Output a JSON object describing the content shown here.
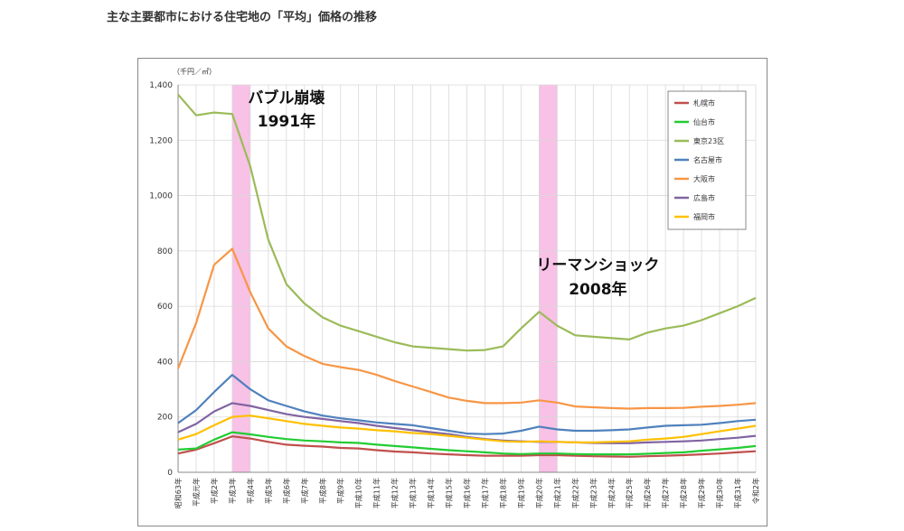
{
  "page": {
    "title": "主な主要都市における住宅地の「平均」価格の推移"
  },
  "colors": {
    "band": "#f7b6e2",
    "grid": "#d9d9d9",
    "axis": "#888888"
  },
  "chart_data": {
    "type": "line",
    "unit_label": "（千円／㎡）",
    "ylim": [
      0,
      1400
    ],
    "yticks": [
      0,
      200,
      400,
      600,
      800,
      1000,
      1200,
      1400
    ],
    "ytick_labels": [
      "0",
      "200",
      "400",
      "600",
      "800",
      "1,000",
      "1,200",
      "1,400"
    ],
    "grid": true,
    "legend_position": "top-right",
    "categories": [
      "昭和63年",
      "平成元年",
      "平成2年",
      "平成3年",
      "平成4年",
      "平成5年",
      "平成6年",
      "平成7年",
      "平成8年",
      "平成9年",
      "平成10年",
      "平成11年",
      "平成12年",
      "平成13年",
      "平成14年",
      "平成15年",
      "平成16年",
      "平成17年",
      "平成18年",
      "平成19年",
      "平成20年",
      "平成21年",
      "平成22年",
      "平成23年",
      "平成24年",
      "平成25年",
      "平成26年",
      "平成27年",
      "平成28年",
      "平成29年",
      "平成30年",
      "平成31年",
      "令和2年"
    ],
    "series": [
      {
        "name": "札幌市",
        "color": "#c0504d",
        "values": [
          68,
          82,
          105,
          130,
          122,
          110,
          100,
          96,
          93,
          88,
          86,
          80,
          75,
          72,
          68,
          65,
          62,
          60,
          60,
          60,
          62,
          62,
          60,
          58,
          57,
          56,
          58,
          60,
          62,
          65,
          68,
          72,
          76
        ]
      },
      {
        "name": "仙台市",
        "color": "#22cc33",
        "values": [
          82,
          86,
          118,
          145,
          137,
          128,
          120,
          115,
          112,
          108,
          106,
          100,
          95,
          90,
          85,
          80,
          76,
          72,
          68,
          66,
          68,
          68,
          66,
          65,
          65,
          65,
          67,
          70,
          72,
          78,
          83,
          88,
          95
        ]
      },
      {
        "name": "東京23区",
        "color": "#9bbb59",
        "values": [
          1365,
          1290,
          1300,
          1295,
          1105,
          840,
          680,
          610,
          560,
          530,
          510,
          490,
          470,
          455,
          450,
          445,
          440,
          442,
          455,
          520,
          580,
          530,
          495,
          490,
          485,
          480,
          505,
          520,
          530,
          550,
          575,
          600,
          630
        ]
      },
      {
        "name": "名古屋市",
        "color": "#4f81bd",
        "values": [
          178,
          225,
          290,
          352,
          300,
          260,
          240,
          220,
          205,
          195,
          188,
          180,
          175,
          170,
          160,
          150,
          140,
          138,
          140,
          150,
          165,
          155,
          150,
          150,
          152,
          155,
          162,
          168,
          170,
          172,
          178,
          185,
          190
        ]
      },
      {
        "name": "大阪市",
        "color": "#f79646",
        "values": [
          375,
          540,
          750,
          808,
          650,
          520,
          455,
          420,
          392,
          380,
          370,
          352,
          330,
          310,
          290,
          270,
          258,
          250,
          250,
          252,
          260,
          252,
          238,
          235,
          232,
          230,
          232,
          232,
          233,
          237,
          240,
          244,
          250
        ]
      },
      {
        "name": "広島市",
        "color": "#8064a2",
        "values": [
          145,
          175,
          220,
          250,
          240,
          225,
          210,
          200,
          193,
          185,
          178,
          168,
          160,
          152,
          145,
          138,
          128,
          120,
          115,
          112,
          110,
          110,
          108,
          106,
          105,
          105,
          108,
          110,
          112,
          115,
          120,
          125,
          132
        ]
      },
      {
        "name": "福岡市",
        "color": "#ffc000",
        "values": [
          118,
          138,
          170,
          200,
          205,
          195,
          185,
          175,
          168,
          162,
          158,
          152,
          148,
          142,
          138,
          132,
          125,
          118,
          112,
          110,
          112,
          110,
          108,
          108,
          110,
          112,
          118,
          122,
          128,
          138,
          148,
          158,
          168
        ]
      }
    ],
    "highlight_bands": [
      {
        "from_index": 3,
        "to_index": 4,
        "label_line1": "バブル崩壊",
        "label_line2": "1991年"
      },
      {
        "from_index": 20,
        "to_index": 21,
        "label_line1": "リーマンショック",
        "label_line2": "2008年"
      }
    ]
  }
}
